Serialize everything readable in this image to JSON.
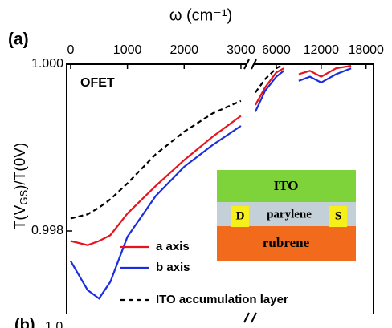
{
  "chart_data": [
    {
      "type": "line",
      "panel_label": "(a)",
      "xlabel": "ω (cm⁻¹)",
      "ylabel": [
        "T(V",
        "GS",
        ")/T(0V)"
      ],
      "annotation": "OFET",
      "xlim": [
        -70,
        3100
      ],
      "xticks": [
        0,
        1000,
        2000,
        3000
      ],
      "ylim": [
        0.997,
        1.0
      ],
      "yticks": [
        {
          "value": 1.0,
          "label": "1.000"
        },
        0.998
      ],
      "x": [
        0,
        300,
        500,
        700,
        1000,
        1500,
        2000,
        2500,
        3000
      ],
      "series": [
        {
          "name": "a axis",
          "color": "#e8141b",
          "style": "solid",
          "values": [
            0.99788,
            0.99783,
            0.99788,
            0.99795,
            0.99821,
            0.99854,
            0.99885,
            0.99913,
            0.99938
          ]
        },
        {
          "name": "b axis",
          "color": "#1a2ee0",
          "style": "solid",
          "values": [
            0.99764,
            0.99729,
            0.99719,
            0.99739,
            0.99793,
            0.99842,
            0.99877,
            0.99903,
            0.99926
          ]
        },
        {
          "name": "ITO accumulation layer",
          "color": "#000000",
          "style": "dashed",
          "values": [
            0.99815,
            0.9982,
            0.99828,
            0.99838,
            0.99857,
            0.99892,
            0.99919,
            0.99941,
            0.99956
          ]
        }
      ]
    },
    {
      "type": "line",
      "xlim": [
        3000,
        19000
      ],
      "xticks": [
        6000,
        12000,
        18000
      ],
      "ylim": [
        0.997,
        1.0
      ],
      "x": [
        3200,
        4500,
        6000,
        7000,
        8000,
        9000,
        10500,
        12000,
        14000,
        16000
      ],
      "series": [
        {
          "color": "#e8141b",
          "style": "solid",
          "values": [
            0.99951,
            0.99972,
            0.9999,
            0.99995,
            null,
            0.99988,
            0.99992,
            0.99985,
            0.99995,
            0.99998
          ]
        },
        {
          "color": "#1a2ee0",
          "style": "solid",
          "values": [
            0.99943,
            0.99968,
            0.99985,
            0.99992,
            null,
            0.9998,
            0.99985,
            0.99978,
            0.99988,
            0.99995
          ]
        },
        {
          "color": "#000000",
          "style": "dashed",
          "values": [
            0.99966,
            0.99982,
            0.99995,
            1.0,
            null,
            null,
            null,
            null,
            null,
            null
          ]
        }
      ]
    }
  ],
  "inset": {
    "top": "ITO",
    "middle": "parylene",
    "bottom": "rubrene",
    "left_contact": "D",
    "right_contact": "S"
  },
  "next_panel": {
    "label": "(b)",
    "ytick": "1.0"
  }
}
